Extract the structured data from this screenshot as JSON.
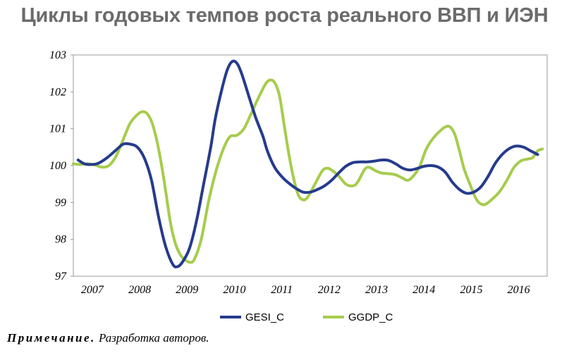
{
  "chart_data": {
    "type": "line",
    "title": "Циклы годовых темпов роста реального ВВП и ИЭН",
    "ylim": [
      97,
      103
    ],
    "y_ticks": [
      "97",
      "98",
      "99",
      "100",
      "101",
      "102",
      "103"
    ],
    "x_range": [
      2006.6,
      2016.6
    ],
    "x_ticks": [
      {
        "label": "2007",
        "x": 2007
      },
      {
        "label": "2008",
        "x": 2008
      },
      {
        "label": "2009",
        "x": 2009
      },
      {
        "label": "2010",
        "x": 2010
      },
      {
        "label": "2011",
        "x": 2011
      },
      {
        "label": "2012",
        "x": 2012
      },
      {
        "label": "2013",
        "x": 2013
      },
      {
        "label": "2014",
        "x": 2014
      },
      {
        "label": "2015",
        "x": 2015
      },
      {
        "label": "2016",
        "x": 2016
      }
    ],
    "grid": false,
    "legend_position": "bottom",
    "series": [
      {
        "name": "GESI_C",
        "color": "#253b8c",
        "points": [
          [
            2006.7,
            100.15
          ],
          [
            2006.8,
            100.07
          ],
          [
            2006.9,
            100.03
          ],
          [
            2007.1,
            100.05
          ],
          [
            2007.3,
            100.2
          ],
          [
            2007.5,
            100.42
          ],
          [
            2007.65,
            100.58
          ],
          [
            2007.8,
            100.58
          ],
          [
            2007.95,
            100.5
          ],
          [
            2008.1,
            100.2
          ],
          [
            2008.25,
            99.6
          ],
          [
            2008.4,
            98.6
          ],
          [
            2008.55,
            97.8
          ],
          [
            2008.7,
            97.32
          ],
          [
            2008.8,
            97.26
          ],
          [
            2008.9,
            97.38
          ],
          [
            2009.05,
            97.75
          ],
          [
            2009.2,
            98.5
          ],
          [
            2009.35,
            99.5
          ],
          [
            2009.5,
            100.5
          ],
          [
            2009.6,
            101.3
          ],
          [
            2009.75,
            102.15
          ],
          [
            2009.85,
            102.6
          ],
          [
            2009.95,
            102.82
          ],
          [
            2010.05,
            102.78
          ],
          [
            2010.15,
            102.5
          ],
          [
            2010.3,
            101.9
          ],
          [
            2010.45,
            101.3
          ],
          [
            2010.6,
            100.8
          ],
          [
            2010.7,
            100.38
          ],
          [
            2010.85,
            99.95
          ],
          [
            2011.0,
            99.7
          ],
          [
            2011.15,
            99.52
          ],
          [
            2011.3,
            99.38
          ],
          [
            2011.45,
            99.28
          ],
          [
            2011.6,
            99.28
          ],
          [
            2011.75,
            99.35
          ],
          [
            2011.9,
            99.45
          ],
          [
            2012.05,
            99.6
          ],
          [
            2012.2,
            99.8
          ],
          [
            2012.35,
            99.98
          ],
          [
            2012.5,
            100.08
          ],
          [
            2012.65,
            100.1
          ],
          [
            2012.8,
            100.1
          ],
          [
            2012.95,
            100.12
          ],
          [
            2013.1,
            100.15
          ],
          [
            2013.25,
            100.14
          ],
          [
            2013.4,
            100.05
          ],
          [
            2013.55,
            99.93
          ],
          [
            2013.7,
            99.88
          ],
          [
            2013.85,
            99.92
          ],
          [
            2014.0,
            99.98
          ],
          [
            2014.15,
            100.0
          ],
          [
            2014.3,
            99.96
          ],
          [
            2014.45,
            99.82
          ],
          [
            2014.6,
            99.55
          ],
          [
            2014.75,
            99.35
          ],
          [
            2014.9,
            99.25
          ],
          [
            2015.05,
            99.28
          ],
          [
            2015.2,
            99.42
          ],
          [
            2015.35,
            99.7
          ],
          [
            2015.5,
            100.05
          ],
          [
            2015.65,
            100.3
          ],
          [
            2015.8,
            100.46
          ],
          [
            2015.95,
            100.53
          ],
          [
            2016.1,
            100.5
          ],
          [
            2016.25,
            100.4
          ],
          [
            2016.4,
            100.3
          ]
        ]
      },
      {
        "name": "GGDP_C",
        "color": "#a6cc4d",
        "points": [
          [
            2006.6,
            100.05
          ],
          [
            2006.75,
            100.03
          ],
          [
            2006.9,
            100.05
          ],
          [
            2007.05,
            100.02
          ],
          [
            2007.2,
            99.96
          ],
          [
            2007.35,
            100.0
          ],
          [
            2007.5,
            100.25
          ],
          [
            2007.65,
            100.7
          ],
          [
            2007.8,
            101.15
          ],
          [
            2007.95,
            101.38
          ],
          [
            2008.05,
            101.46
          ],
          [
            2008.15,
            101.42
          ],
          [
            2008.25,
            101.2
          ],
          [
            2008.35,
            100.75
          ],
          [
            2008.45,
            100.1
          ],
          [
            2008.55,
            99.3
          ],
          [
            2008.65,
            98.45
          ],
          [
            2008.75,
            97.9
          ],
          [
            2008.85,
            97.6
          ],
          [
            2008.95,
            97.45
          ],
          [
            2009.05,
            97.38
          ],
          [
            2009.15,
            97.45
          ],
          [
            2009.3,
            98.0
          ],
          [
            2009.45,
            99.0
          ],
          [
            2009.6,
            99.8
          ],
          [
            2009.75,
            100.4
          ],
          [
            2009.9,
            100.78
          ],
          [
            2010.05,
            100.82
          ],
          [
            2010.2,
            101.0
          ],
          [
            2010.35,
            101.4
          ],
          [
            2010.5,
            101.82
          ],
          [
            2010.65,
            102.2
          ],
          [
            2010.75,
            102.32
          ],
          [
            2010.85,
            102.25
          ],
          [
            2010.95,
            101.9
          ],
          [
            2011.05,
            101.1
          ],
          [
            2011.15,
            100.3
          ],
          [
            2011.25,
            99.65
          ],
          [
            2011.35,
            99.2
          ],
          [
            2011.45,
            99.07
          ],
          [
            2011.55,
            99.15
          ],
          [
            2011.7,
            99.5
          ],
          [
            2011.85,
            99.85
          ],
          [
            2011.95,
            99.93
          ],
          [
            2012.05,
            99.88
          ],
          [
            2012.2,
            99.72
          ],
          [
            2012.35,
            99.5
          ],
          [
            2012.5,
            99.45
          ],
          [
            2012.6,
            99.55
          ],
          [
            2012.75,
            99.9
          ],
          [
            2012.85,
            99.95
          ],
          [
            2012.95,
            99.88
          ],
          [
            2013.1,
            99.8
          ],
          [
            2013.25,
            99.78
          ],
          [
            2013.4,
            99.75
          ],
          [
            2013.55,
            99.66
          ],
          [
            2013.65,
            99.6
          ],
          [
            2013.75,
            99.68
          ],
          [
            2013.9,
            99.95
          ],
          [
            2014.05,
            100.45
          ],
          [
            2014.2,
            100.75
          ],
          [
            2014.35,
            100.95
          ],
          [
            2014.45,
            101.05
          ],
          [
            2014.55,
            101.05
          ],
          [
            2014.65,
            100.85
          ],
          [
            2014.75,
            100.4
          ],
          [
            2014.85,
            99.9
          ],
          [
            2015.0,
            99.4
          ],
          [
            2015.1,
            99.1
          ],
          [
            2015.2,
            98.96
          ],
          [
            2015.3,
            98.95
          ],
          [
            2015.45,
            99.1
          ],
          [
            2015.6,
            99.3
          ],
          [
            2015.75,
            99.6
          ],
          [
            2015.9,
            99.95
          ],
          [
            2016.05,
            100.13
          ],
          [
            2016.2,
            100.18
          ],
          [
            2016.3,
            100.22
          ],
          [
            2016.4,
            100.4
          ],
          [
            2016.5,
            100.45
          ]
        ]
      }
    ]
  },
  "note": {
    "label": "Примечание.",
    "text": "Разработка авторов."
  }
}
